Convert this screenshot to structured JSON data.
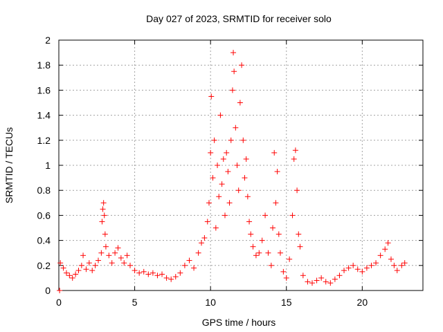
{
  "chart_data": {
    "type": "scatter",
    "title": "Day 027 of 2023, SRMTID for receiver solo",
    "xlabel": "GPS time / hours",
    "ylabel": "SRMTID / TECUs",
    "xlim": [
      0,
      24
    ],
    "ylim": [
      0,
      2
    ],
    "xticks": [
      0,
      5,
      10,
      15,
      20
    ],
    "xtick_labels": [
      "0",
      "5",
      "10",
      "15",
      "20"
    ],
    "yticks": [
      0,
      0.2,
      0.4,
      0.6,
      0.8,
      1.0,
      1.2,
      1.4,
      1.6,
      1.8,
      2.0
    ],
    "ytick_labels": [
      "0",
      "0.2",
      "0.4",
      "0.6",
      "0.8",
      "1",
      "1.2",
      "1.4",
      "1.6",
      "1.8",
      "2"
    ],
    "grid": true,
    "marker": "+",
    "series": [
      {
        "name": "SRMTID",
        "color": "#ff0000",
        "points": [
          [
            0.05,
            0.0
          ],
          [
            0.1,
            0.22
          ],
          [
            0.3,
            0.18
          ],
          [
            0.5,
            0.14
          ],
          [
            0.7,
            0.12
          ],
          [
            0.9,
            0.1
          ],
          [
            1.1,
            0.13
          ],
          [
            1.3,
            0.16
          ],
          [
            1.5,
            0.2
          ],
          [
            1.6,
            0.28
          ],
          [
            1.8,
            0.17
          ],
          [
            2.0,
            0.22
          ],
          [
            2.2,
            0.16
          ],
          [
            2.4,
            0.2
          ],
          [
            2.6,
            0.24
          ],
          [
            2.8,
            0.3
          ],
          [
            2.85,
            0.55
          ],
          [
            2.9,
            0.65
          ],
          [
            2.95,
            0.7
          ],
          [
            3.0,
            0.6
          ],
          [
            3.05,
            0.45
          ],
          [
            3.1,
            0.35
          ],
          [
            3.3,
            0.28
          ],
          [
            3.5,
            0.22
          ],
          [
            3.7,
            0.3
          ],
          [
            3.9,
            0.34
          ],
          [
            4.1,
            0.26
          ],
          [
            4.3,
            0.22
          ],
          [
            4.5,
            0.28
          ],
          [
            4.7,
            0.2
          ],
          [
            5.0,
            0.16
          ],
          [
            5.3,
            0.14
          ],
          [
            5.6,
            0.15
          ],
          [
            5.9,
            0.13
          ],
          [
            6.2,
            0.14
          ],
          [
            6.5,
            0.12
          ],
          [
            6.8,
            0.13
          ],
          [
            7.1,
            0.1
          ],
          [
            7.4,
            0.09
          ],
          [
            7.7,
            0.11
          ],
          [
            8.0,
            0.14
          ],
          [
            8.3,
            0.2
          ],
          [
            8.6,
            0.24
          ],
          [
            8.9,
            0.18
          ],
          [
            9.2,
            0.3
          ],
          [
            9.4,
            0.38
          ],
          [
            9.6,
            0.42
          ],
          [
            9.8,
            0.55
          ],
          [
            9.9,
            0.7
          ],
          [
            10.0,
            1.1
          ],
          [
            10.05,
            1.55
          ],
          [
            10.15,
            0.9
          ],
          [
            10.25,
            1.2
          ],
          [
            10.35,
            0.5
          ],
          [
            10.45,
            1.0
          ],
          [
            10.55,
            0.75
          ],
          [
            10.65,
            1.4
          ],
          [
            10.75,
            0.85
          ],
          [
            10.85,
            1.05
          ],
          [
            10.95,
            0.6
          ],
          [
            11.05,
            1.1
          ],
          [
            11.15,
            0.95
          ],
          [
            11.25,
            0.7
          ],
          [
            11.35,
            1.2
          ],
          [
            11.45,
            1.6
          ],
          [
            11.5,
            1.9
          ],
          [
            11.55,
            1.75
          ],
          [
            11.65,
            1.3
          ],
          [
            11.75,
            1.0
          ],
          [
            11.85,
            0.8
          ],
          [
            11.95,
            1.5
          ],
          [
            12.05,
            1.8
          ],
          [
            12.15,
            1.2
          ],
          [
            12.25,
            0.9
          ],
          [
            12.35,
            1.05
          ],
          [
            12.45,
            0.75
          ],
          [
            12.55,
            0.55
          ],
          [
            12.65,
            0.45
          ],
          [
            12.8,
            0.35
          ],
          [
            13.0,
            0.28
          ],
          [
            13.2,
            0.3
          ],
          [
            13.4,
            0.4
          ],
          [
            13.6,
            0.6
          ],
          [
            13.8,
            0.3
          ],
          [
            14.0,
            0.2
          ],
          [
            14.1,
            0.5
          ],
          [
            14.2,
            1.1
          ],
          [
            14.3,
            0.7
          ],
          [
            14.4,
            0.95
          ],
          [
            14.5,
            0.45
          ],
          [
            14.6,
            0.3
          ],
          [
            14.8,
            0.15
          ],
          [
            15.0,
            0.1
          ],
          [
            15.2,
            0.25
          ],
          [
            15.4,
            0.6
          ],
          [
            15.5,
            1.05
          ],
          [
            15.6,
            1.12
          ],
          [
            15.7,
            0.8
          ],
          [
            15.8,
            0.45
          ],
          [
            15.9,
            0.35
          ],
          [
            16.1,
            0.12
          ],
          [
            16.4,
            0.07
          ],
          [
            16.7,
            0.06
          ],
          [
            17.0,
            0.08
          ],
          [
            17.3,
            0.1
          ],
          [
            17.6,
            0.07
          ],
          [
            17.9,
            0.06
          ],
          [
            18.2,
            0.09
          ],
          [
            18.5,
            0.12
          ],
          [
            18.8,
            0.16
          ],
          [
            19.1,
            0.18
          ],
          [
            19.4,
            0.2
          ],
          [
            19.7,
            0.17
          ],
          [
            20.0,
            0.15
          ],
          [
            20.3,
            0.18
          ],
          [
            20.6,
            0.2
          ],
          [
            20.9,
            0.22
          ],
          [
            21.2,
            0.28
          ],
          [
            21.5,
            0.33
          ],
          [
            21.7,
            0.38
          ],
          [
            21.9,
            0.25
          ],
          [
            22.1,
            0.2
          ],
          [
            22.3,
            0.16
          ],
          [
            22.6,
            0.2
          ],
          [
            22.8,
            0.22
          ]
        ]
      }
    ]
  }
}
